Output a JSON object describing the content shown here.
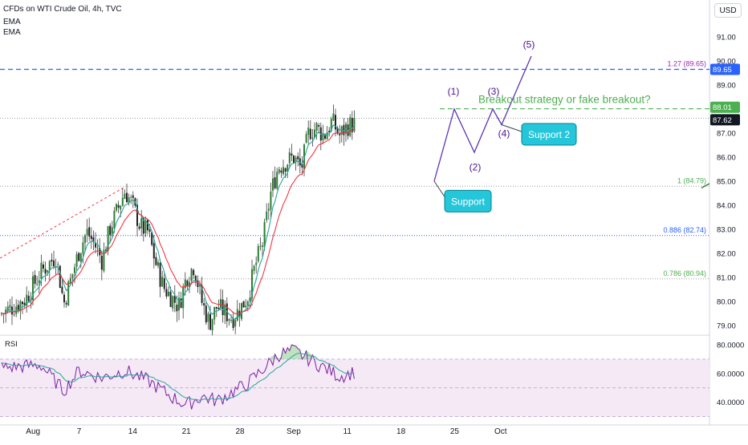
{
  "header": {
    "title": "CFDs on WTI Crude Oil, 4h, TVC",
    "indicator_1": "EMA",
    "indicator_2": "EMA",
    "currency": "USD"
  },
  "chart_data": {
    "type": "candlestick",
    "price_axis": {
      "ticks": [
        "91.00",
        "90.00",
        "89.00",
        "88.00",
        "87.00",
        "86.00",
        "85.00",
        "84.00",
        "83.00",
        "82.00",
        "81.00",
        "80.00",
        "79.00"
      ],
      "range": [
        78.7,
        91.6
      ]
    },
    "time_axis": {
      "ticks": [
        "Aug",
        "7",
        "14",
        "21",
        "28",
        "Sep",
        "11",
        "18",
        "25",
        "Oct"
      ]
    },
    "price_badges": [
      {
        "value": "89.65",
        "color": "#2962ff"
      },
      {
        "value": "88.01",
        "color": "#4caf50"
      },
      {
        "value": "87.62",
        "color": "#131722"
      }
    ],
    "fib_levels": [
      {
        "label": "1.27 (89.65)",
        "value": 89.65,
        "color": "#9c27b0"
      },
      {
        "label": "1 (84.79)",
        "value": 84.79,
        "color": "#4caf50"
      },
      {
        "label": "0.886 (82.74)",
        "value": 82.74,
        "color": "#2962ff"
      },
      {
        "label": "0.786 (80.94)",
        "value": 80.94,
        "color": "#4caf50"
      }
    ],
    "close_path": [
      [
        "Jul 28",
        79.5
      ],
      [
        "Jul 31",
        80.1
      ],
      [
        "Aug 2",
        81.2
      ],
      [
        "Aug 4",
        81.9
      ],
      [
        "Aug 5",
        79.9
      ],
      [
        "Aug 7",
        82.1
      ],
      [
        "Aug 8",
        82.9
      ],
      [
        "Aug 9",
        82.4
      ],
      [
        "Aug 10",
        81.7
      ],
      [
        "Aug 11",
        83.0
      ],
      [
        "Aug 13",
        84.6
      ],
      [
        "Aug 14",
        84.0
      ],
      [
        "Aug 15",
        83.1
      ],
      [
        "Aug 16",
        82.9
      ],
      [
        "Aug 17",
        81.6
      ],
      [
        "Aug 18",
        80.6
      ],
      [
        "Aug 20",
        79.8
      ],
      [
        "Aug 21",
        81.0
      ],
      [
        "Aug 22",
        81.5
      ],
      [
        "Aug 23",
        80.0
      ],
      [
        "Aug 24",
        79.1
      ],
      [
        "Aug 25",
        79.8
      ],
      [
        "Aug 27",
        79.3
      ],
      [
        "Aug 28",
        79.7
      ],
      [
        "Aug 29",
        80.2
      ],
      [
        "Aug 30",
        81.5
      ],
      [
        "Aug 31",
        82.5
      ],
      [
        "Sep 1",
        84.5
      ],
      [
        "Sep 2",
        85.6
      ],
      [
        "Sep 4",
        86.0
      ],
      [
        "Sep 5",
        85.5
      ],
      [
        "Sep 6",
        87.1
      ],
      [
        "Sep 7",
        87.2
      ],
      [
        "Sep 8",
        86.9
      ],
      [
        "Sep 9",
        87.5
      ],
      [
        "Sep 10",
        86.9
      ],
      [
        "Sep 11",
        87.3
      ],
      [
        "Sep 12",
        87.4
      ]
    ],
    "rsi": {
      "label": "RSI",
      "ticks": [
        "80.0000",
        "60.0000",
        "40.0000"
      ],
      "range": [
        27,
        85
      ],
      "band": [
        30,
        70
      ],
      "values": [
        [
          "Jul 28",
          64
        ],
        [
          "Aug 2",
          66
        ],
        [
          "Aug 5",
          48
        ],
        [
          "Aug 7",
          62
        ],
        [
          "Aug 10",
          57
        ],
        [
          "Aug 13",
          62
        ],
        [
          "Aug 16",
          55
        ],
        [
          "Aug 19",
          44
        ],
        [
          "Aug 21",
          38
        ],
        [
          "Aug 23",
          44
        ],
        [
          "Aug 25",
          41
        ],
        [
          "Aug 27",
          47
        ],
        [
          "Aug 29",
          53
        ],
        [
          "Aug 31",
          63
        ],
        [
          "Sep 2",
          73
        ],
        [
          "Sep 4",
          76
        ],
        [
          "Sep 6",
          70
        ],
        [
          "Sep 8",
          64
        ],
        [
          "Sep 10",
          58
        ],
        [
          "Sep 12",
          61
        ]
      ]
    },
    "annotations": {
      "waves": [
        "(1)",
        "(2)",
        "(3)",
        "(4)",
        "(5)"
      ],
      "headline": "Breakout strategy or fake breakout?",
      "support": "Support",
      "support_2": "Support 2"
    }
  }
}
